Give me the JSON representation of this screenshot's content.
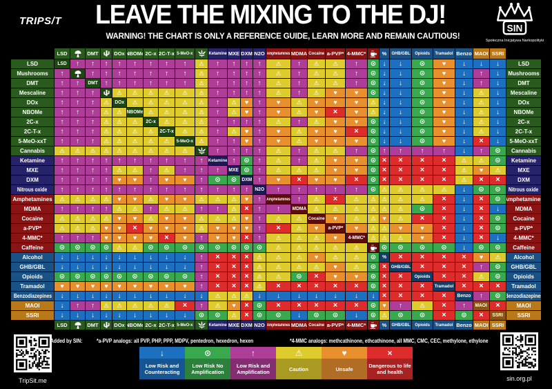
{
  "header": {
    "tripsit_logo": "TRIPS/T",
    "title": "LEAVE THE MIXING TO THE DJ!",
    "subtitle": "WARNING! THE CHART IS ONLY A REFERENCE GUIDE, LEARN MORE AND REMAIN CAUTIOUS!",
    "sin_logo": "SIN",
    "sin_subtitle": "Społeczna Inicjatywa Narkopolityki"
  },
  "chart_data": {
    "type": "heatmap",
    "title": "LEAVE THE MIXING TO THE DJ!",
    "drugs": [
      {
        "label": "LSD",
        "header": "LSD",
        "diag": "LSD",
        "icon": null,
        "group": "psychedelic"
      },
      {
        "label": "Mushrooms",
        "header": null,
        "diag": null,
        "icon": "mushroom-icon",
        "group": "psychedelic"
      },
      {
        "label": "DMT",
        "header": "DMT",
        "diag": "DMT",
        "icon": null,
        "group": "psychedelic"
      },
      {
        "label": "Mescaline",
        "header": null,
        "diag": null,
        "icon": "cactus-icon",
        "group": "psychedelic"
      },
      {
        "label": "DOx",
        "header": "DOx",
        "diag": "DOx",
        "icon": null,
        "group": "psychedelic"
      },
      {
        "label": "NBOMe",
        "header": "NBOMe",
        "diag": "NBOMe",
        "icon": null,
        "group": "psychedelic"
      },
      {
        "label": "2C-x",
        "header": "2C-x",
        "diag": "2C-x",
        "icon": null,
        "group": "psychedelic"
      },
      {
        "label": "2C-T-x",
        "header": "2C-T-x",
        "diag": "2C-T-x",
        "icon": null,
        "group": "psychedelic"
      },
      {
        "label": "5-MeO-xxT",
        "header": "5-MeO-x",
        "diag": "5-MeO-x",
        "icon": null,
        "group": "psychedelic"
      },
      {
        "label": "Cannabis",
        "header": null,
        "diag": null,
        "icon": "cannabis-icon",
        "group": "psychedelic"
      },
      {
        "label": "Ketamine",
        "header": "Ketamine",
        "diag": "Ketamine",
        "icon": null,
        "group": "dissociative"
      },
      {
        "label": "MXE",
        "header": "MXE",
        "diag": "MXE",
        "icon": null,
        "group": "dissociative"
      },
      {
        "label": "DXM",
        "header": "DXM",
        "diag": "DXM",
        "icon": null,
        "group": "dissociative"
      },
      {
        "label": "Nitrous oxide",
        "header": "N2O",
        "diag": "N2O",
        "icon": null,
        "group": "dissociative"
      },
      {
        "label": "Amphetamines",
        "header": "Amphetamines",
        "diag": "Amphetamines",
        "icon": null,
        "group": "stimulant"
      },
      {
        "label": "MDMA",
        "header": "MDMA",
        "diag": "MDMA",
        "icon": null,
        "group": "stimulant"
      },
      {
        "label": "Cocaine",
        "header": "Cocaine",
        "diag": "Cocaine",
        "icon": null,
        "group": "stimulant"
      },
      {
        "label": "a-PVP*",
        "header": "a-PVP*",
        "diag": "a-PVP*",
        "icon": null,
        "group": "stimulant"
      },
      {
        "label": "4-MMC*",
        "header": "4-MMC*",
        "diag": "4-MMC*",
        "icon": null,
        "group": "stimulant"
      },
      {
        "label": "Caffeine",
        "header": null,
        "diag": null,
        "icon": "cup-icon",
        "group": "stimulant"
      },
      {
        "label": "Alcohol",
        "header": "%",
        "diag": "%",
        "icon": null,
        "group": "depressant"
      },
      {
        "label": "GHB/GBL",
        "header": "GHB/GBL",
        "diag": "GHB/GBL",
        "icon": null,
        "group": "depressant"
      },
      {
        "label": "Opioids",
        "header": "Opioids",
        "diag": "Opioids",
        "icon": null,
        "group": "depressant"
      },
      {
        "label": "Tramadol",
        "header": "Tramadol",
        "diag": "Tramadol",
        "icon": null,
        "group": "depressant"
      },
      {
        "label": "Benzodiazepines",
        "header": "Benzo",
        "diag": "Benzo",
        "icon": null,
        "group": "depressant"
      },
      {
        "label": "MAOI",
        "header": "MAOI",
        "diag": "MAOI",
        "icon": null,
        "group": "serotonergic"
      },
      {
        "label": "SSRI",
        "header": "SSRI",
        "diag": "SSRI",
        "icon": null,
        "group": "serotonergic"
      }
    ],
    "matrix": [
      "SUUUUUUUUCUUUUCUCCUODDOHDDD",
      "USUUUUUUUCUUUUCUCCUODDOHDUD",
      "UUSUUUUUUCUUUUCUCCUODDOHDUD",
      "UUUSCCCCCCUUUUCUCHHODDOHDCD",
      "UUUCSCCCCCUCHUHCHHHCDDOHDCD",
      "UUUCCSCCCCUCHUHCHXHCDDOHDCD",
      "UUUCCCSCCCUUUUCUCHHODDOHDCD",
      "UUUCCCCSCCUCHUHCHHXODDOHDCD",
      "UUUCCCCCSCUUHUHCHHHODDOHDXD",
      "CCCCCCCCCSUUUUCUCCUOUUUUDUO",
      "UUUUUUUUUUSUOUCUCHHOXXXXCCO",
      "UUUUCCUCUUUSOUCCCHHOXXXXCHC",
      "UUUUHHUHHUOOSUHXHHXOXXXXCXX",
      "UUUUUUUUUUUUUSUUUUUOCCCCDOO",
      "CCCCHHCHHCCCHUSUCXCCCCCXDXO",
      "UUUUCCUCCUUCXUUSCCCCCCOXDXD",
      "CCCCHHCHHCCCHUCCSHCCHCXXDXO",
      "CCCHHXHHHCHHHUXCHSHCCHHXDXO",
      "UUUHHHHXHUHHXUCCCHSCCCHXDXD",
      "OOOOCCOOOOOOOOCCCCCSOOOODOO",
      "DDDDDDDDDUXXXCCCHCCOSXXXXHC",
      "DDDDDDDDDUXXXCCCCHCOXSXXXUO",
      "OOOOOOOOOUXXXCCOXHHOXXSXXCO",
      "HHHHHHHHHUXXXCXXXXXOXXXSXXX",
      "DDDDDDDDDDCCCDDDDDDDXXXXSUO",
      "DUUCCCCCXUCHXOXXXXXOHUCXUSX",
      "DDDDDDDDDOOCXOODOODOCOOXOXS"
    ],
    "levels": {
      "D": {
        "label": "Low Risk and Counteracting",
        "symbol": "down-arrow",
        "color": "#1d6fc0"
      },
      "O": {
        "label": "Low Risk No Amplification",
        "symbol": "circle-dot",
        "color": "#3aa84f"
      },
      "U": {
        "label": "Low Risk and Amplification",
        "symbol": "up-arrow",
        "color": "#ad3d96"
      },
      "C": {
        "label": "Caution",
        "symbol": "warning-triangle",
        "color": "#decb2d"
      },
      "H": {
        "label": "Unsafe",
        "symbol": "heart",
        "color": "#e88f2e"
      },
      "X": {
        "label": "Dangerous to life and health",
        "symbol": "cross",
        "color": "#dc2c2c"
      }
    },
    "legend_order": [
      "D",
      "O",
      "U",
      "C",
      "H",
      "X"
    ],
    "group_colors": {
      "psychedelic": "#2a5a1e",
      "dissociative": "#27236a",
      "stimulant": "#8a1414",
      "depressant": "#1b5285",
      "serotonergic": "#b97819"
    },
    "diag_colors": {
      "psychedelic": "#1f4716",
      "dissociative": "#1d1a52",
      "stimulant": "#5e0d0d",
      "depressant": "#123d64",
      "serotonergic": "#8a5511"
    }
  },
  "footer": {
    "added_by": "Added by SIN:",
    "apvp_note": "*a-PVP analogs: all PVP, PHP, PPP, MDPV, pentedron, hexedron, hexen",
    "mmc_note": "*4-MMC analogs: methcathinone, ethcathinone, all MMC, CMC, CEC, methylone, ethylone",
    "qr_left_label": "TripSit.me",
    "qr_right_label": "sin.org.pl"
  }
}
